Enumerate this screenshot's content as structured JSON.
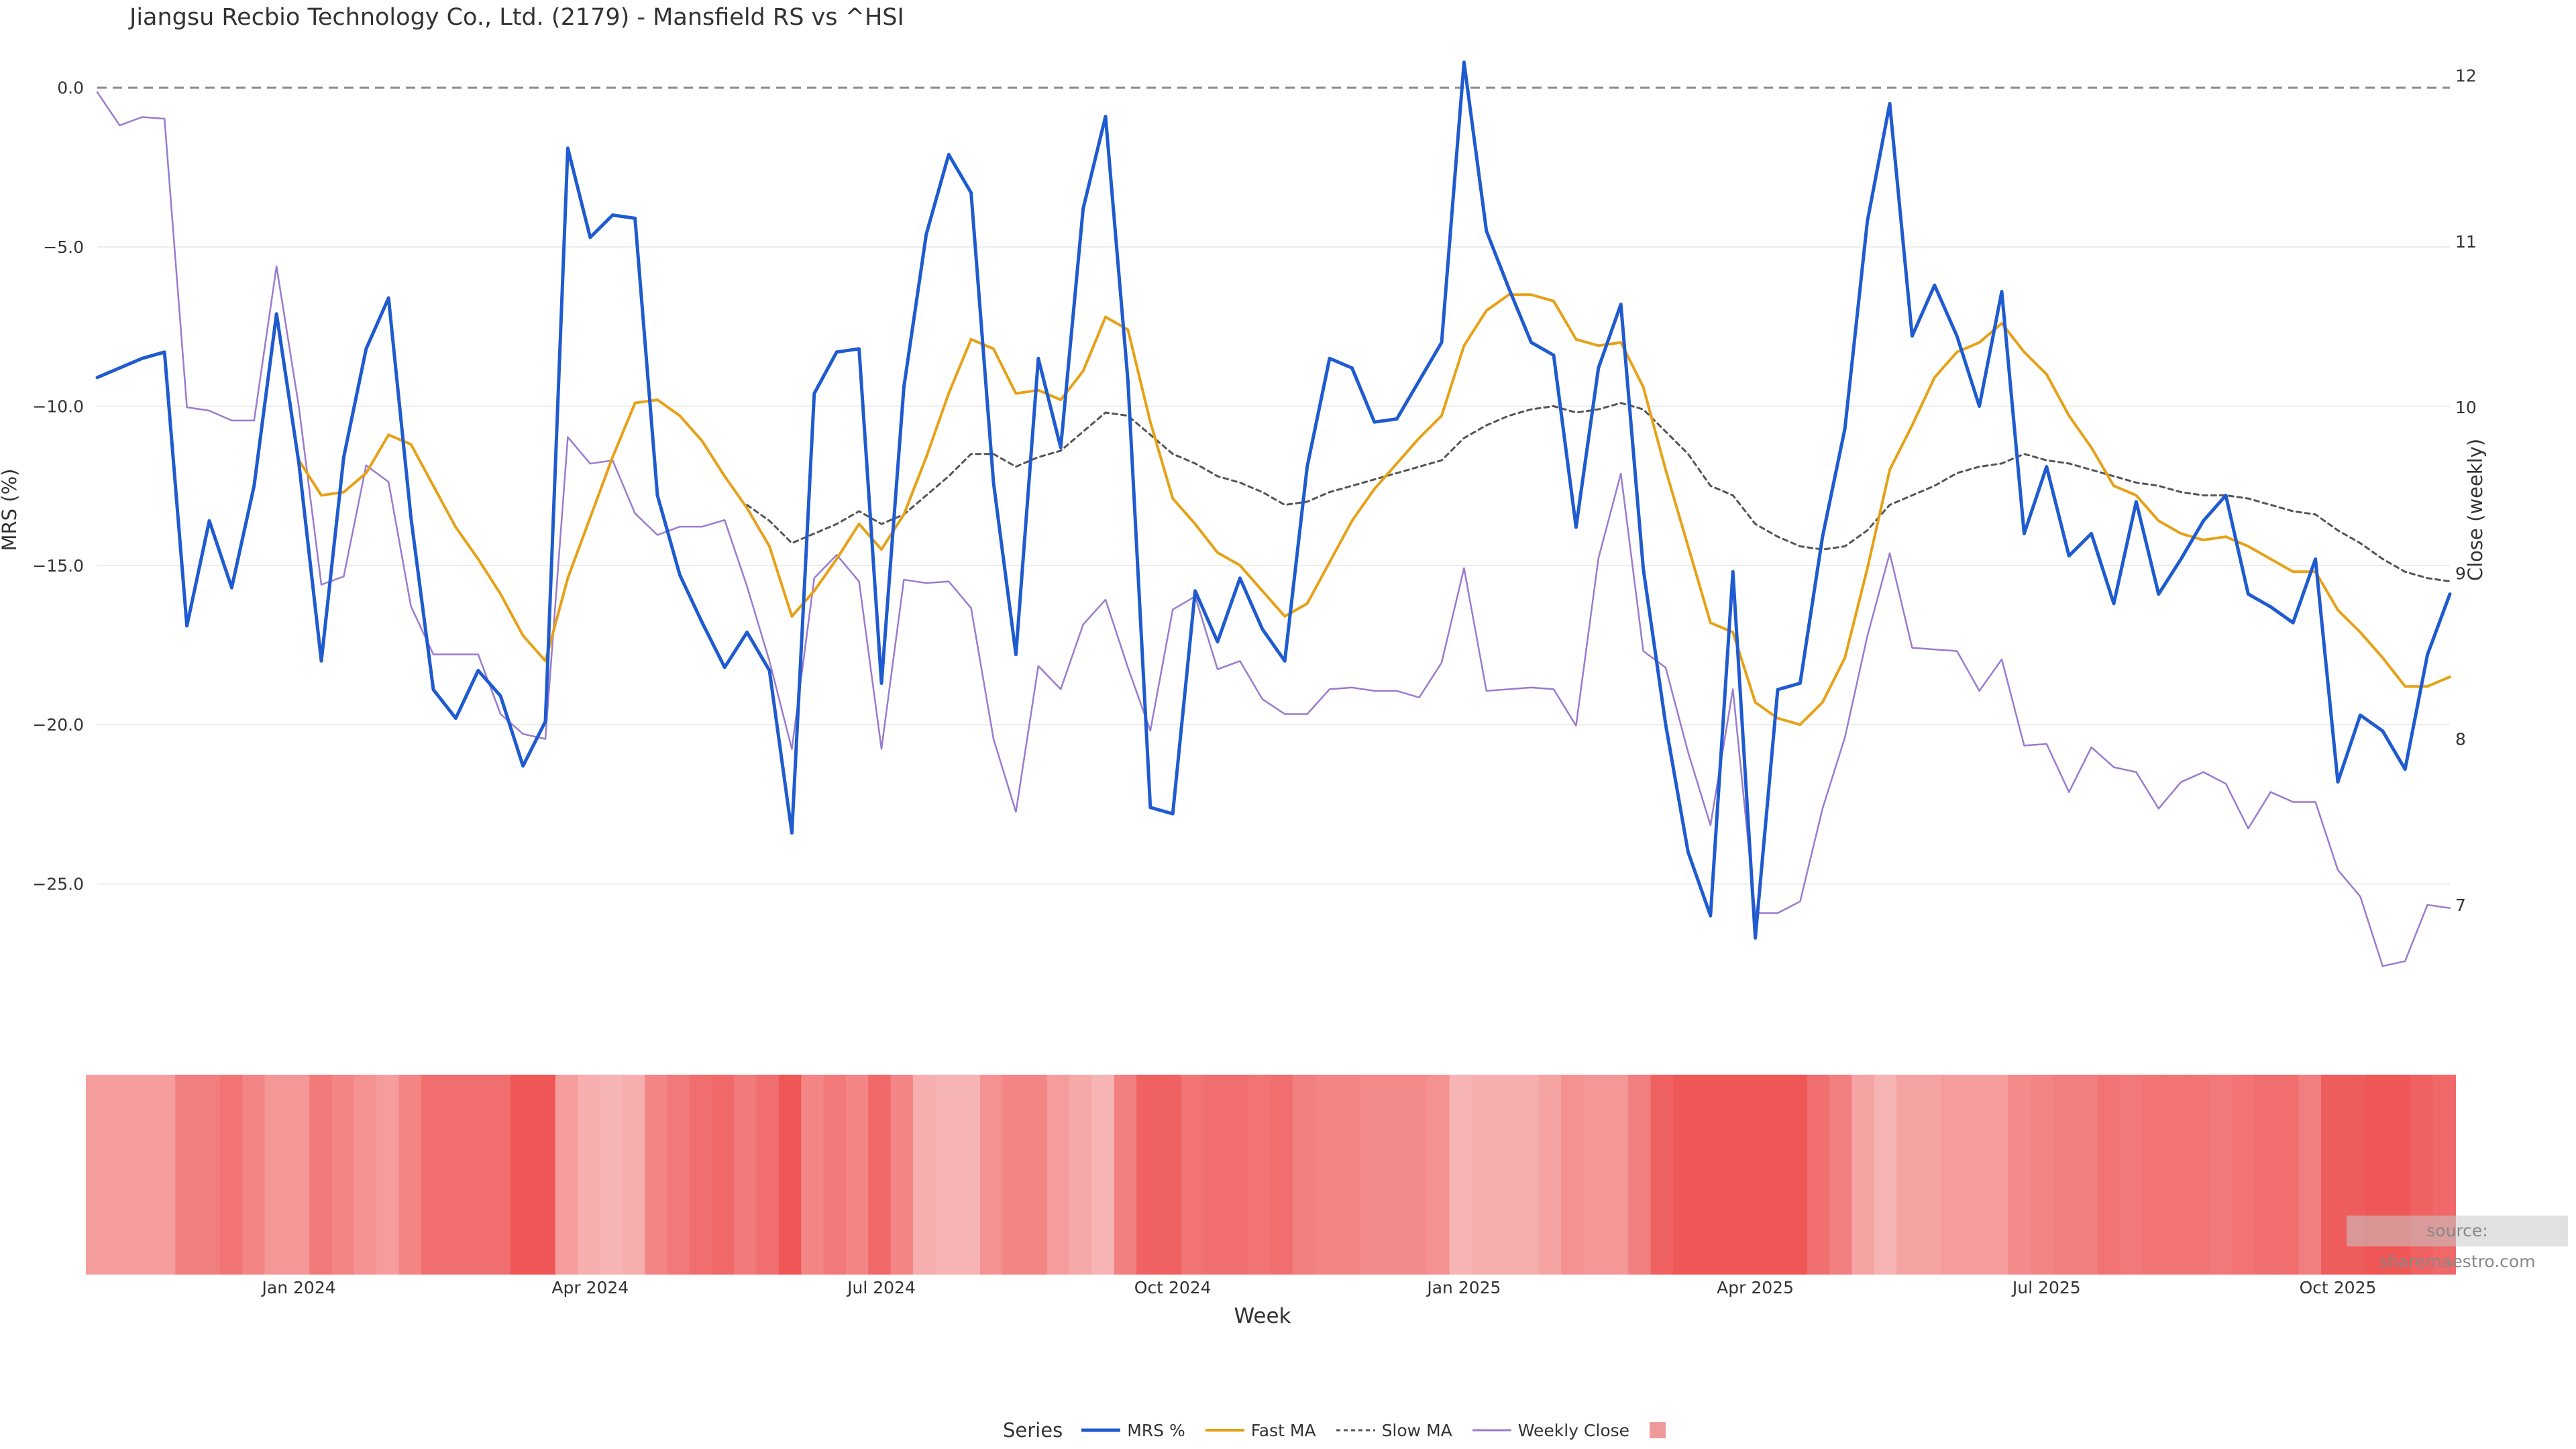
{
  "title": "Jiangsu Recbio Technology Co., Ltd. (2179) - Mansfield RS vs ^HSI",
  "source": "source: sharemaestro.com",
  "colors": {
    "mrs": "#1f5bd0",
    "fast": "#e6a117",
    "slow": "#555555",
    "close": "#9a7bd0",
    "heat_light": "#f8c6c6",
    "heat_dark": "#ee5050"
  },
  "chart_data": {
    "type": "line",
    "xlabel": "Week",
    "ylabel": "MRS (%)",
    "y2label": "Close (weekly)",
    "ylim": [
      -28,
      0.9
    ],
    "y2lim": [
      6.55,
      12.1
    ],
    "yticks": [
      0.0,
      -5.0,
      -10.0,
      -15.0,
      -20.0,
      -25.0
    ],
    "ytick_labels": [
      "0.0",
      "−5.0",
      "−10.0",
      "−15.0",
      "−20.0",
      "−25.0"
    ],
    "y2ticks": [
      12,
      11,
      10,
      9,
      8,
      7
    ],
    "xticks": [
      9,
      22,
      35,
      48,
      61,
      74,
      87,
      100
    ],
    "xtick_labels": [
      "Jan 2024",
      "Apr 2024",
      "Jul 2024",
      "Oct 2024",
      "Jan 2025",
      "Apr 2025",
      "Jul 2025",
      "Oct 2025"
    ],
    "reference_line": 0.0,
    "series": [
      {
        "name": "MRS %",
        "values": [
          -9.1,
          -8.8,
          -8.5,
          -8.3,
          -16.9,
          -13.6,
          -15.7,
          -12.5,
          -7.1,
          -11.8,
          -18.0,
          -11.6,
          -8.2,
          -6.6,
          -13.5,
          -18.9,
          -19.8,
          -18.3,
          -19.1,
          -21.3,
          -19.9,
          -1.9,
          -4.7,
          -4.0,
          -4.1,
          -12.8,
          -15.3,
          -16.8,
          -18.2,
          -17.1,
          -18.3,
          -23.4,
          -9.6,
          -8.3,
          -8.2,
          -18.7,
          -9.4,
          -4.6,
          -2.1,
          -3.3,
          -12.4,
          -17.8,
          -8.5,
          -11.3,
          -3.8,
          -0.9,
          -9.2,
          -22.6,
          -22.8,
          -15.8,
          -17.4,
          -15.4,
          -17.0,
          -18.0,
          -11.9,
          -8.5,
          -8.8,
          -10.5,
          -10.4,
          -9.2,
          -8.0,
          0.8,
          -4.5,
          -6.3,
          -8.0,
          -8.4,
          -13.8,
          -8.8,
          -6.8,
          -15.1,
          -20.0,
          -24.0,
          -26.0,
          -15.2,
          -26.7,
          -18.9,
          -18.7,
          -14.1,
          -10.7,
          -4.2,
          -0.5,
          -7.8,
          -6.2,
          -7.8,
          -10.0,
          -6.4,
          -14.0,
          -11.9,
          -14.7,
          -14.0,
          -16.2,
          -13.0,
          -15.9,
          -14.8,
          -13.6,
          -12.8,
          -15.9,
          -16.3,
          -16.8,
          -14.8,
          -21.8,
          -19.7,
          -20.2,
          -21.4,
          -17.8,
          -15.9
        ]
      },
      {
        "name": "Fast MA",
        "values": [
          null,
          null,
          null,
          null,
          null,
          null,
          null,
          null,
          null,
          -11.7,
          -12.8,
          -12.7,
          -12.1,
          -10.9,
          -11.2,
          -12.5,
          -13.8,
          -14.8,
          -15.9,
          -17.2,
          -18.0,
          -15.4,
          -13.5,
          -11.6,
          -9.9,
          -9.8,
          -10.3,
          -11.1,
          -12.2,
          -13.2,
          -14.4,
          -16.6,
          -15.8,
          -14.8,
          -13.7,
          -14.5,
          -13.4,
          -11.6,
          -9.6,
          -7.9,
          -8.2,
          -9.6,
          -9.5,
          -9.8,
          -8.9,
          -7.2,
          -7.6,
          -10.5,
          -12.9,
          -13.7,
          -14.6,
          -15.0,
          -15.8,
          -16.6,
          -16.2,
          -14.9,
          -13.6,
          -12.6,
          -11.8,
          -11.0,
          -10.3,
          -8.1,
          -7.0,
          -6.5,
          -6.5,
          -6.7,
          -7.9,
          -8.1,
          -8.0,
          -9.4,
          -12.0,
          -14.4,
          -16.8,
          -17.1,
          -19.3,
          -19.8,
          -20.0,
          -19.3,
          -17.9,
          -15.1,
          -12.0,
          -10.6,
          -9.1,
          -8.3,
          -8.0,
          -7.4,
          -8.3,
          -9.0,
          -10.3,
          -11.3,
          -12.5,
          -12.8,
          -13.6,
          -14.0,
          -14.2,
          -14.1,
          -14.4,
          -14.8,
          -15.2,
          -15.2,
          -16.4,
          -17.1,
          -17.9,
          -18.8,
          -18.8,
          -18.5
        ]
      },
      {
        "name": "Slow MA",
        "values": [
          null,
          null,
          null,
          null,
          null,
          null,
          null,
          null,
          null,
          null,
          null,
          null,
          null,
          null,
          null,
          null,
          null,
          null,
          null,
          null,
          null,
          null,
          null,
          null,
          null,
          null,
          null,
          null,
          null,
          -13.1,
          -13.6,
          -14.3,
          -14.0,
          -13.7,
          -13.3,
          -13.7,
          -13.4,
          -12.8,
          -12.2,
          -11.5,
          -11.5,
          -11.9,
          -11.6,
          -11.4,
          -10.8,
          -10.2,
          -10.3,
          -10.9,
          -11.5,
          -11.8,
          -12.2,
          -12.4,
          -12.7,
          -13.1,
          -13.0,
          -12.7,
          -12.5,
          -12.3,
          -12.1,
          -11.9,
          -11.7,
          -11.0,
          -10.6,
          -10.3,
          -10.1,
          -10.0,
          -10.2,
          -10.1,
          -9.9,
          -10.1,
          -10.8,
          -11.5,
          -12.5,
          -12.8,
          -13.7,
          -14.1,
          -14.4,
          -14.5,
          -14.4,
          -13.9,
          -13.1,
          -12.8,
          -12.5,
          -12.1,
          -11.9,
          -11.8,
          -11.5,
          -11.7,
          -11.8,
          -12.0,
          -12.2,
          -12.4,
          -12.5,
          -12.7,
          -12.8,
          -12.8,
          -12.9,
          -13.1,
          -13.3,
          -13.4,
          -13.9,
          -14.3,
          -14.8,
          -15.2,
          -15.4,
          -15.5
        ]
      },
      {
        "name": "Weekly Close",
        "axis": "right",
        "values": [
          11.9,
          11.7,
          11.75,
          11.74,
          10.0,
          9.98,
          9.92,
          9.92,
          10.85,
          10.0,
          8.93,
          8.98,
          9.65,
          9.55,
          8.8,
          8.51,
          8.51,
          8.51,
          8.15,
          8.03,
          8.0,
          9.82,
          9.66,
          9.68,
          9.36,
          9.23,
          9.28,
          9.28,
          9.32,
          8.92,
          8.47,
          7.94,
          8.97,
          9.11,
          8.95,
          7.94,
          8.96,
          8.94,
          8.95,
          8.79,
          8.0,
          7.56,
          8.44,
          8.3,
          8.69,
          8.84,
          8.43,
          8.05,
          8.78,
          8.86,
          8.42,
          8.47,
          8.24,
          8.15,
          8.15,
          8.3,
          8.31,
          8.29,
          8.29,
          8.25,
          8.46,
          9.03,
          8.29,
          8.3,
          8.31,
          8.3,
          8.08,
          9.09,
          9.6,
          8.53,
          8.43,
          7.92,
          7.48,
          8.3,
          6.95,
          6.95,
          7.02,
          7.58,
          8.01,
          8.62,
          9.12,
          8.55,
          8.54,
          8.53,
          8.29,
          8.48,
          7.96,
          7.97,
          7.68,
          7.95,
          7.83,
          7.8,
          7.58,
          7.74,
          7.8,
          7.73,
          7.46,
          7.68,
          7.62,
          7.62,
          7.21,
          7.05,
          6.63,
          6.66,
          7.0,
          6.98
        ]
      },
      {
        "name": "",
        "type": "heatmap",
        "legend_swatch": true,
        "intensities": [
          0.35,
          0.35,
          0.35,
          0.35,
          0.6,
          0.6,
          0.7,
          0.55,
          0.4,
          0.4,
          0.65,
          0.55,
          0.45,
          0.35,
          0.55,
          0.75,
          0.75,
          0.75,
          0.75,
          0.95,
          0.95,
          0.35,
          0.2,
          0.15,
          0.2,
          0.55,
          0.65,
          0.75,
          0.8,
          0.65,
          0.75,
          0.95,
          0.55,
          0.65,
          0.55,
          0.8,
          0.55,
          0.2,
          0.15,
          0.15,
          0.45,
          0.55,
          0.55,
          0.35,
          0.25,
          0.15,
          0.6,
          0.85,
          0.85,
          0.7,
          0.75,
          0.75,
          0.7,
          0.75,
          0.6,
          0.55,
          0.55,
          0.5,
          0.5,
          0.5,
          0.45,
          0.15,
          0.2,
          0.2,
          0.2,
          0.3,
          0.45,
          0.4,
          0.4,
          0.6,
          0.85,
          0.95,
          0.95,
          0.95,
          0.95,
          0.95,
          0.95,
          0.75,
          0.6,
          0.3,
          0.15,
          0.3,
          0.3,
          0.35,
          0.35,
          0.35,
          0.5,
          0.55,
          0.6,
          0.6,
          0.7,
          0.65,
          0.7,
          0.7,
          0.7,
          0.65,
          0.7,
          0.75,
          0.75,
          0.6,
          0.9,
          0.9,
          0.95,
          0.95,
          0.85,
          0.8
        ]
      }
    ]
  }
}
